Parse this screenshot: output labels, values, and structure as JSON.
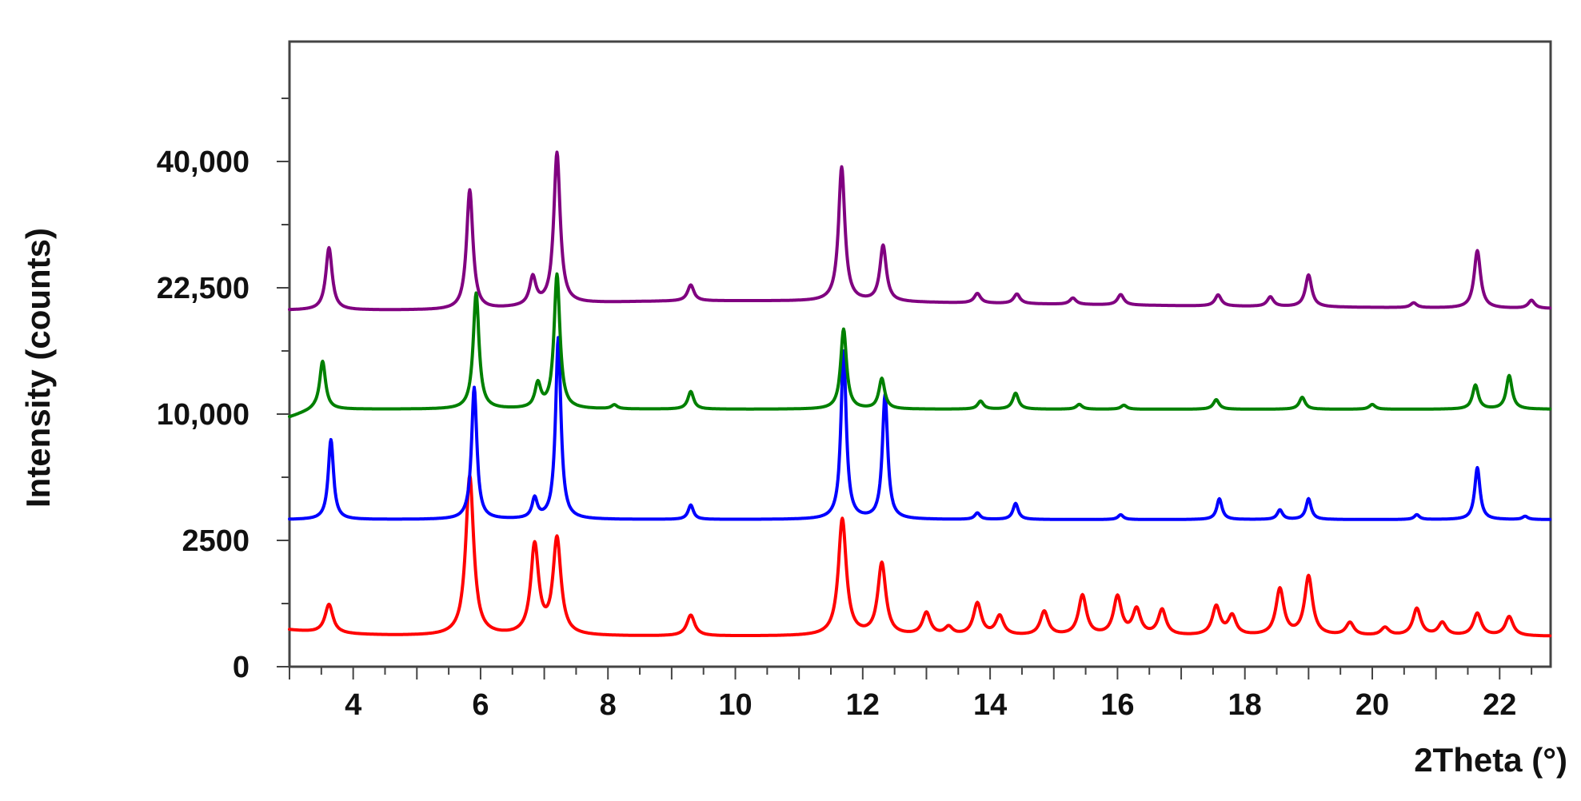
{
  "chart_data": {
    "type": "line",
    "title": "",
    "xlabel": "2Theta (°)",
    "ylabel": "Intensity (counts)",
    "x_range": [
      3,
      22.8
    ],
    "x_ticks": [
      4,
      6,
      8,
      10,
      12,
      14,
      16,
      18,
      20,
      22
    ],
    "y_ticks": [
      {
        "label": "0",
        "value": 0
      },
      {
        "label": "2500",
        "value": 2500
      },
      {
        "label": "10,000",
        "value": 10000
      },
      {
        "label": "22,500",
        "value": 22500
      },
      {
        "label": "40,000",
        "value": 40000
      }
    ],
    "y_range": [
      0,
      62000
    ],
    "y_scale": "nonlinear (ticks at 0, 2500, 10000, 22500, 40000 equally spaced)",
    "grid": false,
    "legend": "none",
    "series": [
      {
        "color": "#ff0000",
        "baseline": 0,
        "peaks": [
          [
            3.62,
            18
          ],
          [
            5.83,
            100
          ],
          [
            6.85,
            56
          ],
          [
            7.2,
            60
          ],
          [
            9.3,
            13
          ],
          [
            11.68,
            73
          ],
          [
            12.3,
            45
          ],
          [
            13.0,
            14
          ],
          [
            13.35,
            5
          ],
          [
            13.8,
            20
          ],
          [
            14.15,
            12
          ],
          [
            14.85,
            15
          ],
          [
            15.45,
            25
          ],
          [
            16.0,
            24
          ],
          [
            16.3,
            16
          ],
          [
            16.7,
            16
          ],
          [
            17.55,
            18
          ],
          [
            17.8,
            12
          ],
          [
            18.55,
            29
          ],
          [
            19.0,
            37
          ],
          [
            19.65,
            8
          ],
          [
            20.2,
            5
          ],
          [
            20.7,
            17
          ],
          [
            21.1,
            8
          ],
          [
            21.65,
            14
          ],
          [
            22.15,
            12
          ]
        ]
      },
      {
        "color": "#0000ff",
        "baseline": 6000,
        "peaks": [
          [
            3.65,
            100
          ],
          [
            5.9,
            165
          ],
          [
            6.85,
            25
          ],
          [
            7.22,
            227
          ],
          [
            9.3,
            18
          ],
          [
            11.7,
            210
          ],
          [
            12.35,
            155
          ],
          [
            13.8,
            8
          ],
          [
            14.4,
            20
          ],
          [
            16.05,
            6
          ],
          [
            17.6,
            26
          ],
          [
            18.55,
            12
          ],
          [
            19.0,
            26
          ],
          [
            20.7,
            6
          ],
          [
            21.65,
            65
          ],
          [
            22.4,
            4
          ]
        ]
      },
      {
        "color": "#008000",
        "baseline": 11000,
        "peaks": [
          [
            3.52,
            60
          ],
          [
            5.93,
            145
          ],
          [
            6.9,
            30
          ],
          [
            7.2,
            168
          ],
          [
            8.1,
            5
          ],
          [
            9.3,
            22
          ],
          [
            11.7,
            100
          ],
          [
            12.3,
            38
          ],
          [
            13.85,
            10
          ],
          [
            14.4,
            20
          ],
          [
            15.4,
            6
          ],
          [
            16.1,
            5
          ],
          [
            17.55,
            12
          ],
          [
            18.9,
            15
          ],
          [
            20.0,
            6
          ],
          [
            21.62,
            30
          ],
          [
            22.15,
            42
          ]
        ]
      },
      {
        "color": "#800080",
        "baseline": 25000,
        "peaks": [
          [
            3.62,
            78
          ],
          [
            5.83,
            150
          ],
          [
            6.82,
            35
          ],
          [
            7.2,
            190
          ],
          [
            9.3,
            20
          ],
          [
            11.67,
            168
          ],
          [
            12.32,
            70
          ],
          [
            13.8,
            12
          ],
          [
            14.42,
            12
          ],
          [
            15.3,
            8
          ],
          [
            16.05,
            13
          ],
          [
            17.58,
            14
          ],
          [
            18.4,
            12
          ],
          [
            19.0,
            40
          ],
          [
            20.65,
            6
          ],
          [
            21.65,
            72
          ],
          [
            22.5,
            10
          ]
        ]
      }
    ]
  }
}
